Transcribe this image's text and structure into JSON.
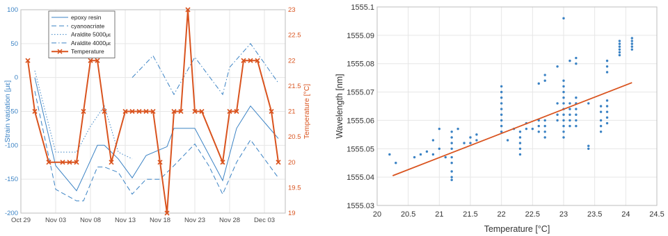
{
  "chart_data": [
    {
      "type": "line",
      "xlabel": "",
      "ylabel_left": "Strain variation [με]",
      "ylabel_right": "Temperature [°C]",
      "ylim_left": [
        -200,
        100
      ],
      "ylim_right": [
        19,
        23
      ],
      "xlim": [
        "Oct 29",
        "Dec 06"
      ],
      "x_tick_labels": [
        "Oct 29",
        "Nov 03",
        "Nov 08",
        "Nov 13",
        "Nov 18",
        "Nov 23",
        "Nov 28",
        "Dec 03"
      ],
      "y_left_ticks": [
        100,
        50,
        0,
        -50,
        -100,
        -150,
        -200
      ],
      "y_right_ticks": [
        23,
        22.5,
        22,
        21.5,
        21,
        20.5,
        20,
        19.5,
        19
      ],
      "grid": true,
      "legend_position": "top-left",
      "colors": {
        "strain": "#3a82c4",
        "temperature": "#d9531e",
        "axis_right": "#d9531e"
      },
      "series": [
        {
          "name": "epoxy resin",
          "style": "solid",
          "axis": "left",
          "x": [
            "Oct 31",
            "Nov 03",
            "Nov 06",
            "Nov 07",
            "Nov 09",
            "Nov 10",
            "Nov 12",
            "Nov 14",
            "Nov 16",
            "Nov 19",
            "Nov 20",
            "Nov 23",
            "Nov 27",
            "Nov 29",
            "Dec 01",
            "Dec 05"
          ],
          "values": [
            0,
            -130,
            -167,
            -145,
            -100,
            -100,
            -120,
            -148,
            -115,
            -102,
            -75,
            -75,
            -152,
            -75,
            -42,
            -90
          ]
        },
        {
          "name": "cyanoacriate",
          "style": "dashed",
          "axis": "left",
          "x": [
            "Oct 31",
            "Nov 03",
            "Nov 06",
            "Nov 07",
            "Nov 09",
            "Nov 10",
            "Nov 12",
            "Nov 14",
            "Nov 16",
            "Nov 18",
            "Nov 20",
            "Nov 23",
            "Nov 25",
            "Nov 27",
            "Nov 29",
            "Dec 01",
            "Dec 05"
          ],
          "values": [
            -20,
            -165,
            -182,
            -182,
            -132,
            -132,
            -140,
            -172,
            -150,
            -150,
            -130,
            -98,
            -130,
            -172,
            -125,
            -92,
            -148
          ]
        },
        {
          "name": "Araldite 5000",
          "style": "dotted",
          "axis": "left",
          "x": [
            "Oct 31",
            "Nov 03",
            "Nov 06",
            "Nov 08",
            "Nov 10",
            "Nov 12",
            "Nov 14"
          ],
          "values": [
            10,
            -110,
            -110,
            -72,
            -42,
            -110,
            -120
          ]
        },
        {
          "name": "Araldite 4000",
          "style": "dashdot",
          "axis": "left",
          "x": [
            "Nov 14",
            "Nov 17",
            "Nov 20",
            "Nov 23",
            "Nov 27",
            "Nov 28",
            "Dec 01",
            "Dec 05"
          ],
          "values": [
            0,
            32,
            -25,
            30,
            -25,
            15,
            50,
            -8
          ]
        },
        {
          "name": "Temperature",
          "style": "solid-x",
          "axis": "right",
          "x": [
            "Oct 30",
            "Oct 31",
            "Nov 02",
            "Nov 04",
            "Nov 05",
            "Nov 06",
            "Nov 07",
            "Nov 08",
            "Nov 09",
            "Nov 10",
            "Nov 11",
            "Nov 13",
            "Nov 14",
            "Nov 15",
            "Nov 16",
            "Nov 17",
            "Nov 18",
            "Nov 19",
            "Nov 20",
            "Nov 21",
            "Nov 22",
            "Nov 23",
            "Nov 24",
            "Nov 27",
            "Nov 28",
            "Nov 29",
            "Nov 30",
            "Dec 01",
            "Dec 02",
            "Dec 04",
            "Dec 05"
          ],
          "values": [
            22,
            21,
            20,
            20,
            20,
            20,
            21,
            22,
            22,
            21,
            20,
            21,
            21,
            21,
            21,
            21,
            20,
            19,
            21,
            21,
            23,
            21,
            21,
            20,
            21,
            21,
            22,
            22,
            22,
            21,
            20
          ]
        }
      ]
    },
    {
      "type": "scatter",
      "xlabel": "Temperature [°C]",
      "ylabel": "Wavelength [nm]",
      "xlim": [
        20,
        24.5
      ],
      "ylim": [
        1555.03,
        1555.1
      ],
      "x_ticks": [
        20,
        20.5,
        21,
        21.5,
        22,
        22.5,
        23,
        23.5,
        24,
        24.5
      ],
      "y_ticks": [
        1555.1,
        1555.09,
        1555.08,
        1555.07,
        1555.06,
        1555.05,
        1555.04,
        1555.03
      ],
      "grid": true,
      "colors": {
        "points": "#3a82c4",
        "fit": "#d9531e"
      },
      "fit_line": {
        "x": [
          20.25,
          24.1
        ],
        "y": [
          1555.0405,
          1555.0733
        ]
      },
      "points": [
        [
          20.2,
          1555.048
        ],
        [
          20.3,
          1555.045
        ],
        [
          20.6,
          1555.047
        ],
        [
          20.7,
          1555.048
        ],
        [
          20.8,
          1555.049
        ],
        [
          20.9,
          1555.048
        ],
        [
          20.9,
          1555.053
        ],
        [
          21.0,
          1555.057
        ],
        [
          21.0,
          1555.05
        ],
        [
          21.1,
          1555.047
        ],
        [
          21.2,
          1555.056
        ],
        [
          21.2,
          1555.054
        ],
        [
          21.2,
          1555.052
        ],
        [
          21.2,
          1555.05
        ],
        [
          21.2,
          1555.047
        ],
        [
          21.2,
          1555.045
        ],
        [
          21.2,
          1555.042
        ],
        [
          21.2,
          1555.04
        ],
        [
          21.2,
          1555.039
        ],
        [
          21.3,
          1555.057
        ],
        [
          21.4,
          1555.052
        ],
        [
          21.5,
          1555.054
        ],
        [
          21.5,
          1555.052
        ],
        [
          21.6,
          1555.055
        ],
        [
          21.6,
          1555.053
        ],
        [
          22.0,
          1555.072
        ],
        [
          22.0,
          1555.07
        ],
        [
          22.0,
          1555.068
        ],
        [
          22.0,
          1555.066
        ],
        [
          22.0,
          1555.064
        ],
        [
          22.0,
          1555.062
        ],
        [
          22.0,
          1555.06
        ],
        [
          22.0,
          1555.058
        ],
        [
          22.0,
          1555.056
        ],
        [
          22.1,
          1555.053
        ],
        [
          22.2,
          1555.057
        ],
        [
          22.3,
          1555.056
        ],
        [
          22.3,
          1555.054
        ],
        [
          22.3,
          1555.052
        ],
        [
          22.3,
          1555.05
        ],
        [
          22.3,
          1555.048
        ],
        [
          22.4,
          1555.059
        ],
        [
          22.4,
          1555.057
        ],
        [
          22.5,
          1555.057
        ],
        [
          22.6,
          1555.073
        ],
        [
          22.6,
          1555.06
        ],
        [
          22.6,
          1555.058
        ],
        [
          22.6,
          1555.056
        ],
        [
          22.7,
          1555.076
        ],
        [
          22.7,
          1555.074
        ],
        [
          22.7,
          1555.06
        ],
        [
          22.7,
          1555.058
        ],
        [
          22.7,
          1555.056
        ],
        [
          22.7,
          1555.054
        ],
        [
          22.9,
          1555.079
        ],
        [
          22.9,
          1555.066
        ],
        [
          22.9,
          1555.062
        ],
        [
          22.9,
          1555.06
        ],
        [
          23.0,
          1555.096
        ],
        [
          23.0,
          1555.074
        ],
        [
          23.0,
          1555.072
        ],
        [
          23.0,
          1555.07
        ],
        [
          23.0,
          1555.068
        ],
        [
          23.0,
          1555.066
        ],
        [
          23.0,
          1555.064
        ],
        [
          23.0,
          1555.062
        ],
        [
          23.0,
          1555.06
        ],
        [
          23.0,
          1555.058
        ],
        [
          23.0,
          1555.056
        ],
        [
          23.0,
          1555.054
        ],
        [
          23.1,
          1555.081
        ],
        [
          23.1,
          1555.066
        ],
        [
          23.1,
          1555.064
        ],
        [
          23.1,
          1555.062
        ],
        [
          23.1,
          1555.06
        ],
        [
          23.1,
          1555.058
        ],
        [
          23.2,
          1555.082
        ],
        [
          23.2,
          1555.08
        ],
        [
          23.2,
          1555.068
        ],
        [
          23.2,
          1555.066
        ],
        [
          23.2,
          1555.064
        ],
        [
          23.2,
          1555.062
        ],
        [
          23.2,
          1555.06
        ],
        [
          23.2,
          1555.058
        ],
        [
          23.4,
          1555.066
        ],
        [
          23.4,
          1555.051
        ],
        [
          23.4,
          1555.05
        ],
        [
          23.6,
          1555.065
        ],
        [
          23.6,
          1555.063
        ],
        [
          23.6,
          1555.06
        ],
        [
          23.6,
          1555.058
        ],
        [
          23.6,
          1555.056
        ],
        [
          23.7,
          1555.081
        ],
        [
          23.7,
          1555.079
        ],
        [
          23.7,
          1555.077
        ],
        [
          23.7,
          1555.067
        ],
        [
          23.7,
          1555.065
        ],
        [
          23.7,
          1555.063
        ],
        [
          23.7,
          1555.061
        ],
        [
          23.7,
          1555.059
        ],
        [
          23.9,
          1555.088
        ],
        [
          23.9,
          1555.087
        ],
        [
          23.9,
          1555.086
        ],
        [
          23.9,
          1555.085
        ],
        [
          23.9,
          1555.084
        ],
        [
          23.9,
          1555.083
        ],
        [
          24.1,
          1555.089
        ],
        [
          24.1,
          1555.088
        ],
        [
          24.1,
          1555.087
        ],
        [
          24.1,
          1555.086
        ],
        [
          24.1,
          1555.085
        ]
      ]
    }
  ],
  "legend": {
    "entries": [
      "epoxy resin",
      "cyanoacriate",
      "Araldite 5000",
      "Araldite 4000",
      "Temperature"
    ],
    "unit": "με"
  }
}
